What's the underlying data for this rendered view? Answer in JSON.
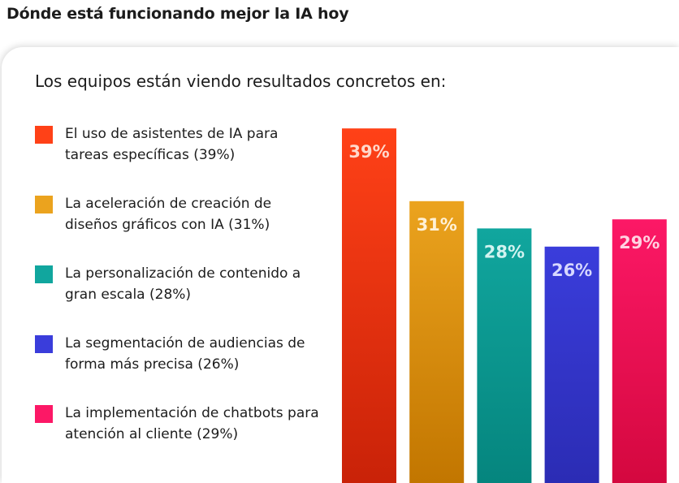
{
  "page": {
    "title": "Dónde está funcionando mejor la IA hoy",
    "subtitle": "Los equipos están viendo resultados concretos en:"
  },
  "legend": [
    {
      "text": "El uso de asistentes de IA para tareas específicas (39%)",
      "color": "#FF4117"
    },
    {
      "text": "La aceleración de creación de diseños gráficos con IA (31%)",
      "color": "#EBA31E"
    },
    {
      "text": "La personalización de contenido a gran escala (28%)",
      "color": "#11A69E"
    },
    {
      "text": "La segmentación de audiencias de forma más precisa (26%)",
      "color": "#3A3DDB"
    },
    {
      "text": "La implementación de chatbots para atención al cliente (29%)",
      "color": "#FC1866"
    }
  ],
  "chart_data": {
    "type": "bar",
    "categories": [
      "El uso de asistentes de IA para tareas específicas",
      "La aceleración de creación de diseños gráficos con IA",
      "La personalización de contenido a gran escala",
      "La segmentación de audiencias de forma más precisa",
      "La implementación de chatbots para atención al cliente"
    ],
    "values": [
      39,
      31,
      28,
      26,
      29
    ],
    "value_labels": [
      "39%",
      "31%",
      "28%",
      "26%",
      "29%"
    ],
    "colors": [
      "#FF4117",
      "#EBA31E",
      "#11A69E",
      "#3A3DDB",
      "#FC1866"
    ],
    "gradient_bottom_colors": [
      "#C92208",
      "#C27600",
      "#05857E",
      "#2B2CB4",
      "#D4083F"
    ],
    "label_colors": [
      "#FFD9CC",
      "#FFF1D6",
      "#D2F3F0",
      "#D7D8FF",
      "#FFD2E1"
    ],
    "unit": "%",
    "grid": false,
    "legend_position": "left"
  }
}
